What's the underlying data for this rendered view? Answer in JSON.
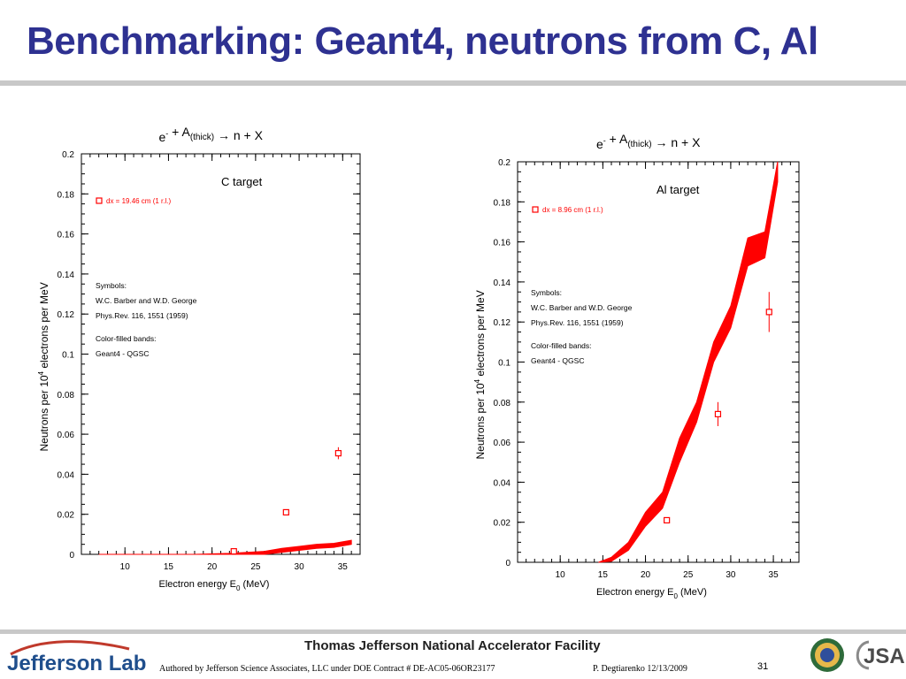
{
  "slide": {
    "title": "Benchmarking: Geant4, neutrons from C, Al",
    "footer": {
      "facility": "Thomas Jefferson National Accelerator Facility",
      "authored": "Authored by Jefferson Science Associates, LLC under DOE Contract #  DE-AC05-06OR23177",
      "author": "P. Degtiarenko 12/13/2009",
      "page": "31",
      "logo_text": "Jefferson Lab",
      "jsa_text": "JSA"
    }
  },
  "colors": {
    "title": "#2e3191",
    "band": "#ff0000",
    "marker": "#ff0000",
    "lab_blue": "#1f4e8c"
  },
  "chart_data": [
    {
      "type": "area",
      "title": "e⁻ + A(thick) → n + X",
      "panel_label": "C target",
      "xlabel": "Electron energy E₀ (MeV)",
      "ylabel": "Neutrons per 10⁴ electrons per MeV",
      "xlim": [
        5,
        37
      ],
      "ylim": [
        0,
        0.2
      ],
      "xticks": [
        10,
        15,
        20,
        25,
        30,
        35
      ],
      "yticks": [
        0,
        0.02,
        0.04,
        0.06,
        0.08,
        0.1,
        0.12,
        0.14,
        0.16,
        0.18,
        0.2
      ],
      "legend_marker": "dx = 19.46 cm (1 r.l.)",
      "notes": [
        "Symbols:",
        "W.C. Barber and W.D. George",
        "Phys.Rev. 116, 1551 (1959)",
        "Color-filled bands:",
        "Geant4 - QGSC"
      ],
      "band": {
        "name": "Geant4 - QGSC",
        "x": [
          7,
          18,
          22,
          26,
          28,
          30,
          32,
          34,
          36
        ],
        "low": [
          0,
          0,
          0,
          0,
          0.001,
          0.002,
          0.003,
          0.0035,
          0.005
        ],
        "high": [
          0,
          0,
          0.0005,
          0.0015,
          0.003,
          0.004,
          0.005,
          0.0055,
          0.007
        ]
      },
      "series": [
        {
          "name": "W.C. Barber and W.D. George",
          "x": [
            22.5,
            28.5,
            34.5
          ],
          "y": [
            0.0015,
            0.021,
            0.0505
          ],
          "err": [
            0.001,
            0.0015,
            0.003
          ]
        }
      ]
    },
    {
      "type": "area",
      "title": "e⁻ + A(thick) → n + X",
      "panel_label": "Al target",
      "xlabel": "Electron energy E₀ (MeV)",
      "ylabel": "Neutrons per 10⁴ electrons per MeV",
      "xlim": [
        5,
        38
      ],
      "ylim": [
        0,
        0.2
      ],
      "xticks": [
        10,
        15,
        20,
        25,
        30,
        35
      ],
      "yticks": [
        0,
        0.02,
        0.04,
        0.06,
        0.08,
        0.1,
        0.12,
        0.14,
        0.16,
        0.18,
        0.2
      ],
      "legend_marker": "dx = 8.96 cm (1 r.l.)",
      "notes": [
        "Symbols:",
        "W.C. Barber and W.D. George",
        "Phys.Rev. 116, 1551 (1959)",
        "Color-filled bands:",
        "Geant4 - QGSC"
      ],
      "band": {
        "name": "Geant4 - QGSC",
        "x": [
          14.5,
          16,
          18,
          20,
          22,
          24,
          26,
          28,
          30,
          32,
          34,
          35.5
        ],
        "low": [
          0,
          0.0005,
          0.006,
          0.018,
          0.027,
          0.05,
          0.07,
          0.1,
          0.117,
          0.148,
          0.152,
          0.19
        ],
        "high": [
          0,
          0.0025,
          0.01,
          0.025,
          0.035,
          0.062,
          0.08,
          0.11,
          0.128,
          0.162,
          0.165,
          0.2
        ]
      },
      "series": [
        {
          "name": "W.C. Barber and W.D. George",
          "x": [
            22.5,
            28.5,
            34.5
          ],
          "y": [
            0.021,
            0.074,
            0.125
          ],
          "err": [
            0.0015,
            0.006,
            0.01
          ]
        }
      ]
    }
  ]
}
